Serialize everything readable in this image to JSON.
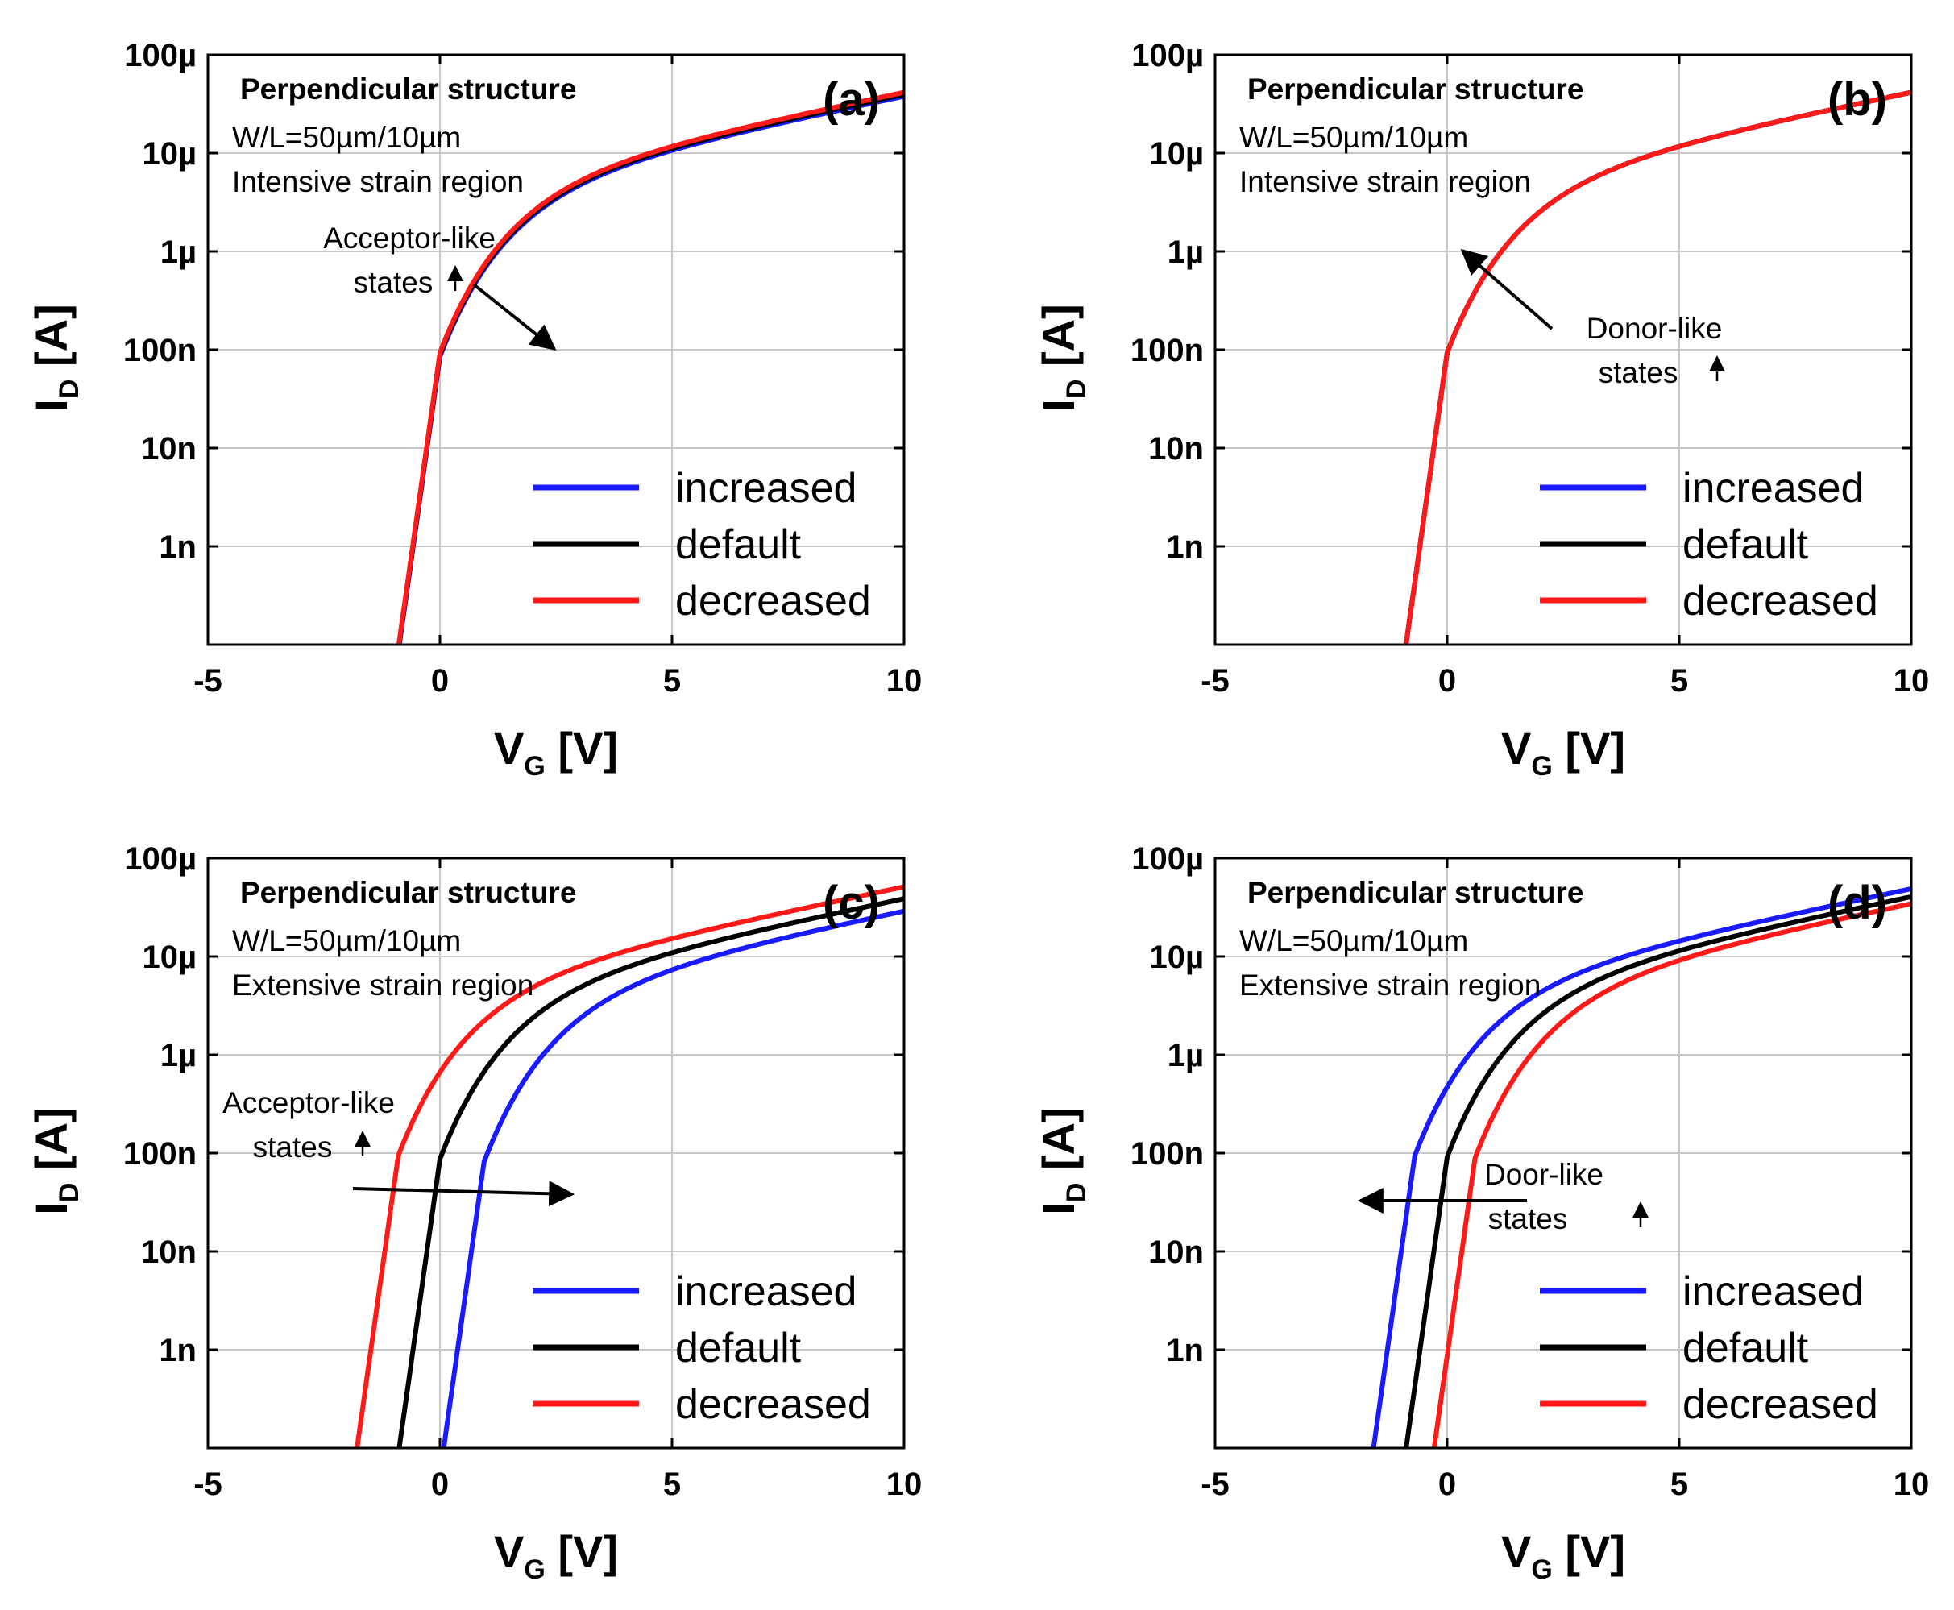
{
  "colors": {
    "increased": "#1a1aff",
    "default": "#000000",
    "decreased": "#ff1a1a",
    "grid": "#c8c8c8"
  },
  "chart_data": [
    {
      "type": "line",
      "panel": "(a)",
      "structure": "Perpendicular structure",
      "wl": "W/L=50µm/10µm",
      "region": "Intensive strain region",
      "xlabel": "V",
      "xlabel_sub": "G",
      "xunit": "[V]",
      "ylabel": "I",
      "ylabel_sub": "D",
      "yunit": "[A]",
      "xlim": [
        -5,
        10
      ],
      "ylim_log10": [
        -10,
        -4
      ],
      "yscale": "log",
      "x_ticks": [
        "-5",
        "0",
        "5",
        "10"
      ],
      "y_ticks": [
        "100µ",
        "10µ",
        "1µ",
        "100n",
        "10n",
        "1n"
      ],
      "legend": [
        "increased",
        "default",
        "decreased"
      ],
      "annotation": {
        "line1": "Acceptor-like",
        "line2": "states",
        "direction": "right"
      },
      "series": [
        {
          "name": "increased",
          "vth_shift": 0.0,
          "log_offset": -0.04
        },
        {
          "name": "default",
          "vth_shift": 0.0,
          "log_offset": -0.02
        },
        {
          "name": "decreased",
          "vth_shift": 0.0,
          "log_offset": 0.0
        }
      ]
    },
    {
      "type": "line",
      "panel": "(b)",
      "structure": "Perpendicular structure",
      "wl": "W/L=50µm/10µm",
      "region": "Intensive strain region",
      "xlabel": "V",
      "xlabel_sub": "G",
      "xunit": "[V]",
      "ylabel": "I",
      "ylabel_sub": "D",
      "yunit": "[A]",
      "xlim": [
        -5,
        10
      ],
      "ylim_log10": [
        -10,
        -4
      ],
      "yscale": "log",
      "x_ticks": [
        "-5",
        "0",
        "5",
        "10"
      ],
      "y_ticks": [
        "100µ",
        "10µ",
        "1µ",
        "100n",
        "10n",
        "1n"
      ],
      "legend": [
        "increased",
        "default",
        "decreased"
      ],
      "annotation": {
        "line1": "Donor-like",
        "line2": "states",
        "direction": "left"
      },
      "series": [
        {
          "name": "increased",
          "vth_shift": 0.0,
          "log_offset": 0.0
        },
        {
          "name": "default",
          "vth_shift": 0.0,
          "log_offset": 0.0
        },
        {
          "name": "decreased",
          "vth_shift": 0.0,
          "log_offset": 0.0
        }
      ]
    },
    {
      "type": "line",
      "panel": "(c)",
      "structure": "Perpendicular structure",
      "wl": "W/L=50µm/10µm",
      "region": "Extensive strain region",
      "xlabel": "V",
      "xlabel_sub": "G",
      "xunit": "[V]",
      "ylabel": "I",
      "ylabel_sub": "D",
      "yunit": "[A]",
      "xlim": [
        -5,
        10
      ],
      "ylim_log10": [
        -10,
        -4
      ],
      "yscale": "log",
      "x_ticks": [
        "-5",
        "0",
        "5",
        "10"
      ],
      "y_ticks": [
        "100µ",
        "10µ",
        "1µ",
        "100n",
        "10n",
        "1n"
      ],
      "legend": [
        "increased",
        "default",
        "decreased"
      ],
      "annotation": {
        "line1": "Acceptor-like",
        "line2": "states",
        "direction": "right"
      },
      "series": [
        {
          "name": "increased",
          "vth_shift": 0.95,
          "log_offset": -0.06
        },
        {
          "name": "default",
          "vth_shift": 0.0,
          "log_offset": -0.03
        },
        {
          "name": "decreased",
          "vth_shift": -0.9,
          "log_offset": 0.0
        }
      ]
    },
    {
      "type": "line",
      "panel": "(d)",
      "structure": "Perpendicular structure",
      "wl": "W/L=50µm/10µm",
      "region": "Extensive strain region",
      "xlabel": "V",
      "xlabel_sub": "G",
      "xunit": "[V]",
      "ylabel": "I",
      "ylabel_sub": "D",
      "yunit": "[A]",
      "xlim": [
        -5,
        10
      ],
      "ylim_log10": [
        -10,
        -4
      ],
      "yscale": "log",
      "x_ticks": [
        "-5",
        "0",
        "5",
        "10"
      ],
      "y_ticks": [
        "100µ",
        "10µ",
        "1µ",
        "100n",
        "10n",
        "1n"
      ],
      "legend": [
        "increased",
        "default",
        "decreased"
      ],
      "annotation": {
        "line1": "Door-like",
        "line2": "states",
        "direction": "left"
      },
      "series": [
        {
          "name": "increased",
          "vth_shift": -0.7,
          "log_offset": 0.0
        },
        {
          "name": "default",
          "vth_shift": 0.0,
          "log_offset": -0.01
        },
        {
          "name": "decreased",
          "vth_shift": 0.6,
          "log_offset": -0.02
        }
      ]
    }
  ]
}
